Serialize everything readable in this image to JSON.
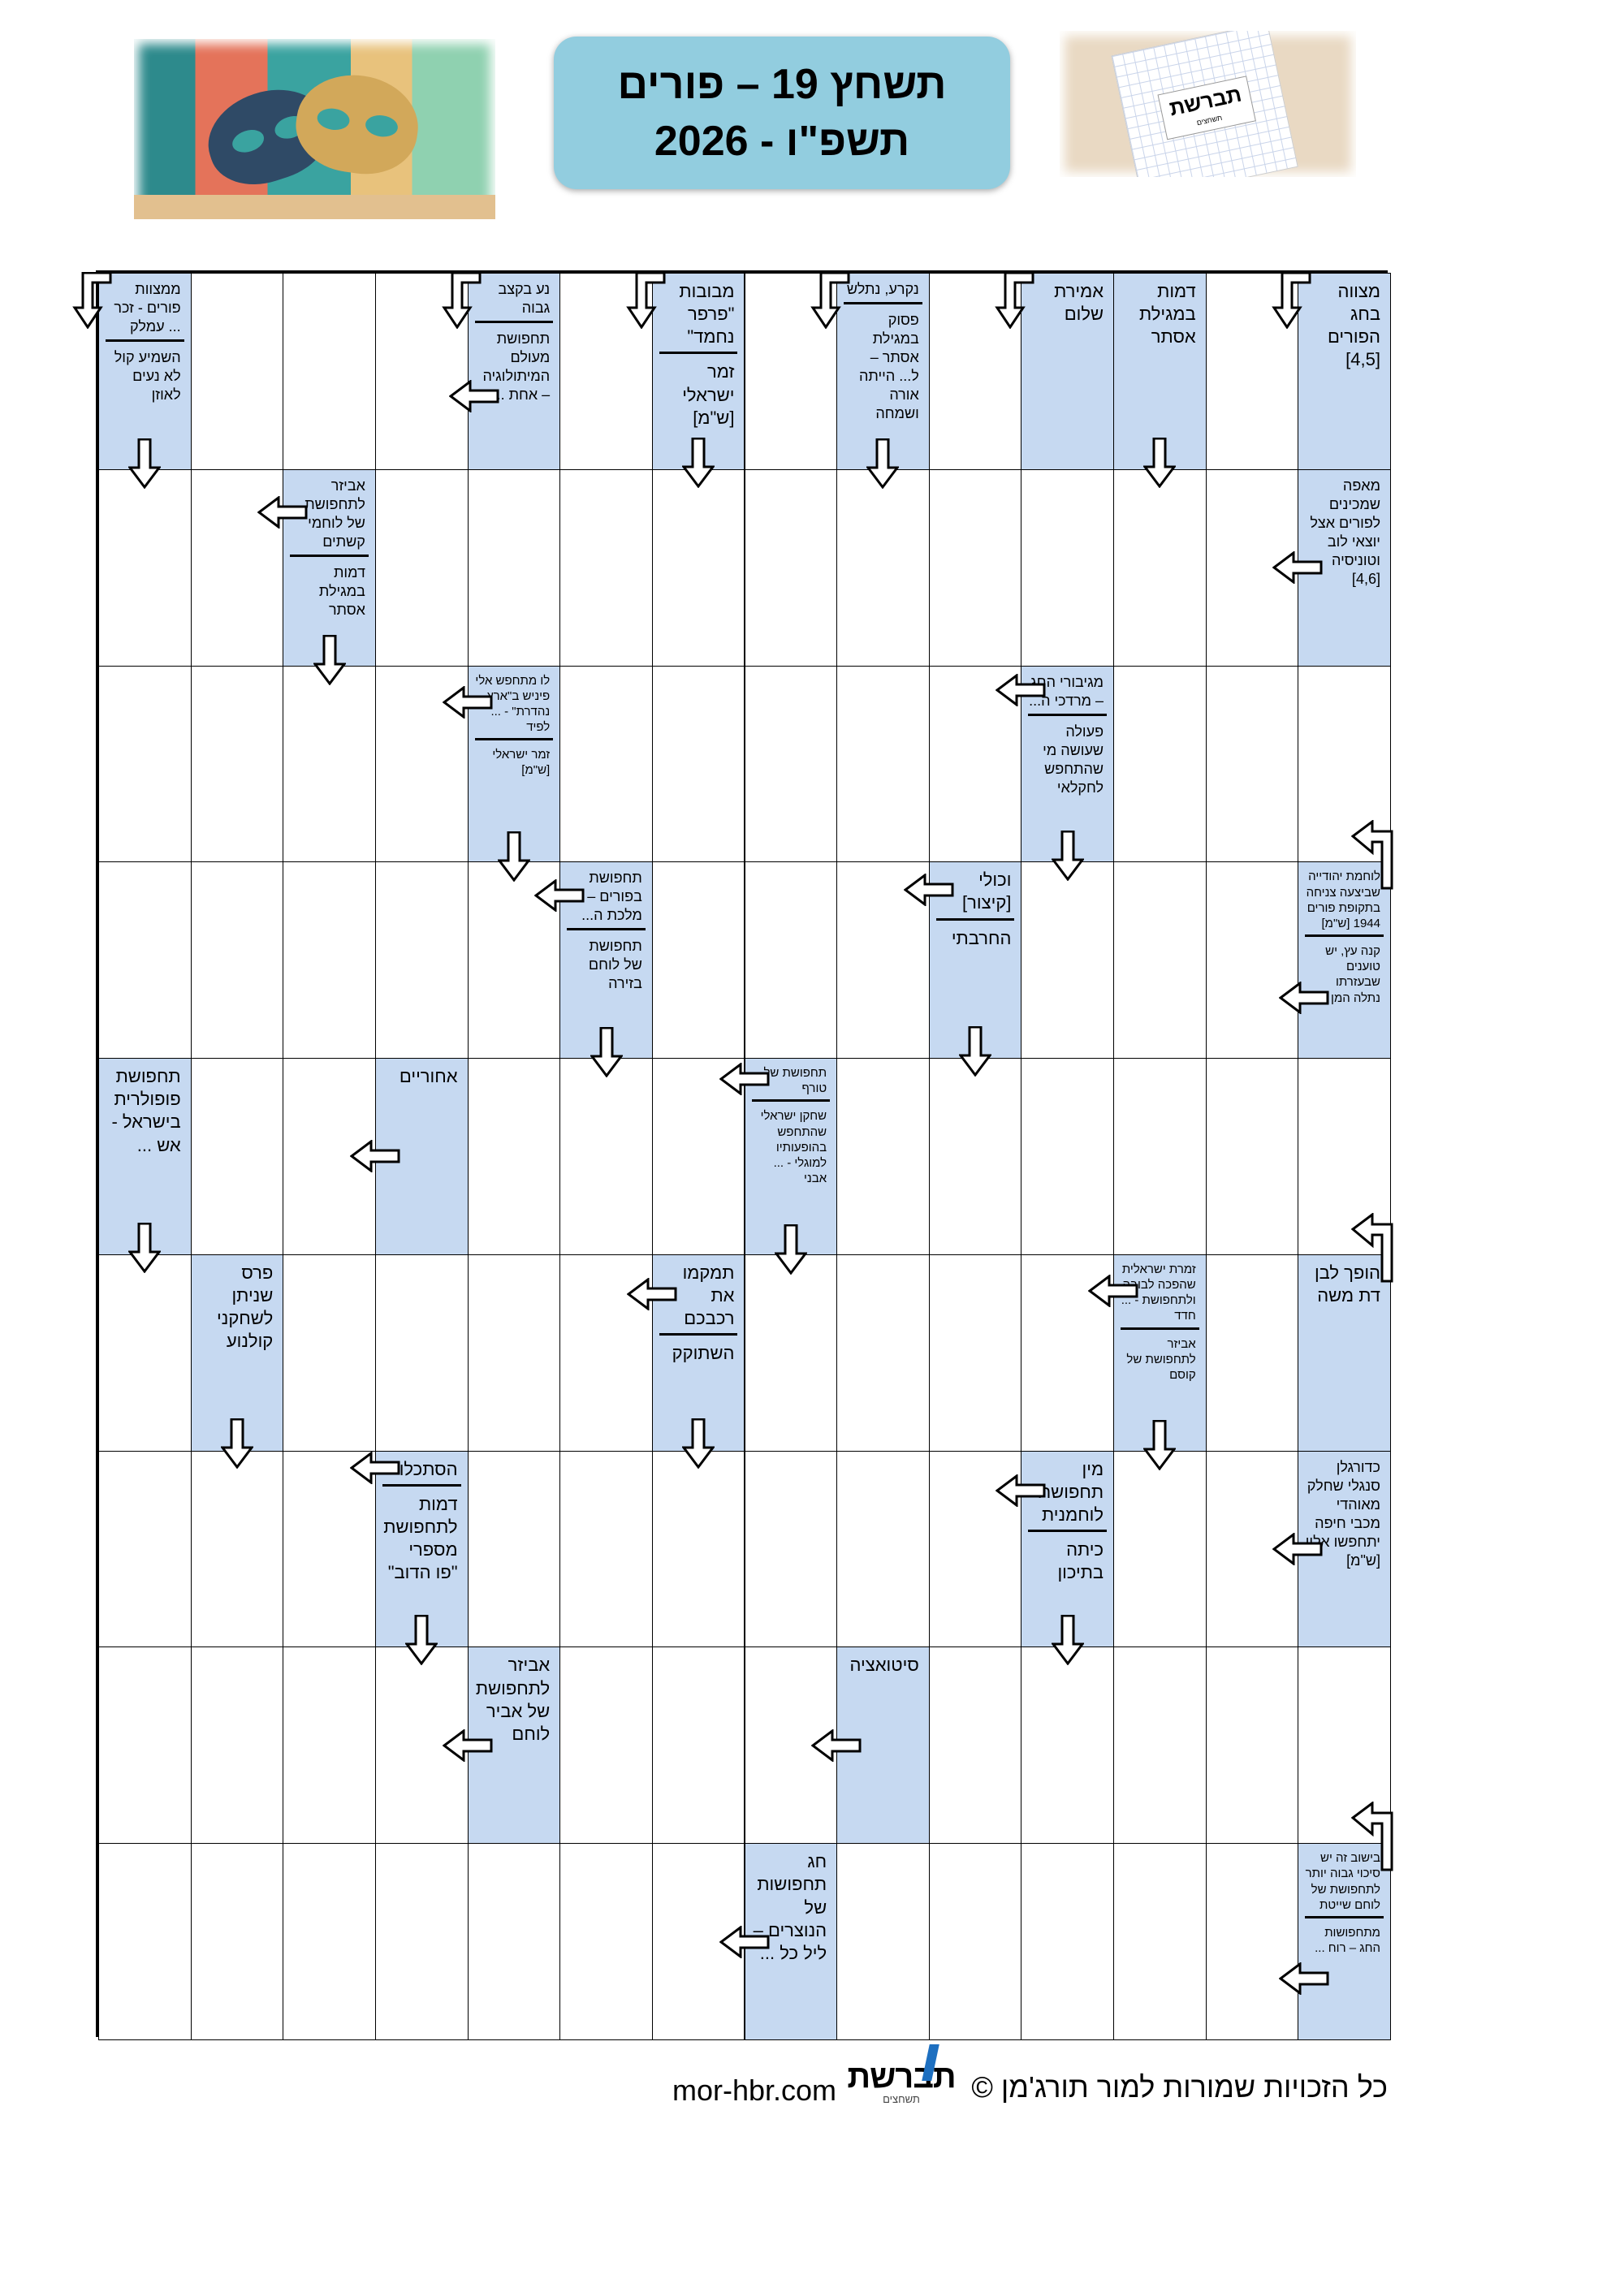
{
  "header": {
    "title_line1": "תשחץ 19 – פורים",
    "title_line2": "תשפ\"ו - 2026",
    "left_image": "carnival-masks",
    "right_image": {
      "logo_text": "תברשת",
      "logo_sub": "תשחצים"
    }
  },
  "puzzle": {
    "rows": 9,
    "cols": 14,
    "clue_color": "#C6D9F1",
    "clues": [
      {
        "row": 0,
        "col": 0,
        "parts": [
          {
            "text": "מצווה בחג הפורים [4,5]",
            "arrow": "elbow-down"
          }
        ]
      },
      {
        "row": 0,
        "col": 2,
        "parts": [
          {
            "text": "דמות במגילת אסתר",
            "arrow": "down"
          }
        ]
      },
      {
        "row": 0,
        "col": 3,
        "parts": [
          {
            "text": "אמירת שלום",
            "arrow": "elbow-down"
          }
        ]
      },
      {
        "row": 0,
        "col": 5,
        "parts": [
          {
            "text": "נקרע, נתלש",
            "arrow": "elbow-down"
          },
          {
            "text": "פסוק במגילת אסתר – ל... הייתה אורה ושמחה",
            "arrow": "down"
          }
        ]
      },
      {
        "row": 0,
        "col": 7,
        "parts": [
          {
            "text": "מבובות \"פרפר נחמד\"",
            "arrow": "elbow-down"
          },
          {
            "text": "זמר ישראלי [ש\"מ]",
            "arrow": "down"
          }
        ]
      },
      {
        "row": 0,
        "col": 9,
        "parts": [
          {
            "text": "נע בקצב גבוה",
            "arrow": "elbow-down"
          },
          {
            "text": "תחפושת מעולם המיתולוגיה – אחת ...",
            "arrow": "left"
          }
        ]
      },
      {
        "row": 0,
        "col": 13,
        "parts": [
          {
            "text": "ממצוות פורים - זכר ... עמלק",
            "arrow": "elbow-down"
          },
          {
            "text": "השמיע קול לא נעים לאוזן",
            "arrow": "down"
          }
        ]
      },
      {
        "row": 1,
        "col": 0,
        "parts": [
          {
            "text": "מאפה שמכינים לפורים אצל יוצאי לוב וטוניסיה [4,6]",
            "arrow": "left"
          }
        ]
      },
      {
        "row": 1,
        "col": 11,
        "parts": [
          {
            "text": "אביזר לתחפושת של לוחמי קשתים",
            "arrow": "left"
          },
          {
            "text": "דמות במגילת אסתר",
            "arrow": "down"
          }
        ]
      },
      {
        "row": 2,
        "col": 3,
        "parts": [
          {
            "text": "מגיבורי החג – מרדכי ה...",
            "arrow": "left"
          },
          {
            "text": "פעולה שעושה מי שהתחפש לחקלאי",
            "arrow": "down"
          }
        ]
      },
      {
        "row": 2,
        "col": 9,
        "parts": [
          {
            "text": "לו מתחפש אלי פיניש ב\"ארץ נהדרת\" - ... לפיד",
            "arrow": "left"
          },
          {
            "text": "זמר ישראלי [ש\"מ]",
            "arrow": "down"
          }
        ]
      },
      {
        "row": 3,
        "col": 0,
        "parts": [
          {
            "text": "לוחמת יהודייה שביצעה צניחה בתקופת פורים 1944 [ש\"מ]",
            "arrow": "elbow-up-left"
          },
          {
            "text": "קנה עץ, יש טוענים שבעזרתו נתלה המן",
            "arrow": "left"
          }
        ]
      },
      {
        "row": 3,
        "col": 4,
        "parts": [
          {
            "text": "וכולי [קיצור]",
            "arrow": "left"
          },
          {
            "text": "החרבתי",
            "arrow": "down"
          }
        ]
      },
      {
        "row": 3,
        "col": 8,
        "parts": [
          {
            "text": "תחפושת בפורים – מלכת ה...",
            "arrow": "left"
          },
          {
            "text": "תחפושת של לוחם בזירה",
            "arrow": "down"
          }
        ]
      },
      {
        "row": 4,
        "col": 6,
        "parts": [
          {
            "text": "תחפושת של טורף",
            "arrow": "left"
          },
          {
            "text": "שחקן ישראלי שהתחפש בהופעותיו למוגלי - ... אבני",
            "arrow": "down"
          }
        ]
      },
      {
        "row": 4,
        "col": 10,
        "parts": [
          {
            "text": "אחוריים",
            "arrow": "left"
          }
        ]
      },
      {
        "row": 4,
        "col": 13,
        "parts": [
          {
            "text": "תחפושת פופולרית בישראל - אש ...",
            "arrow": "down"
          }
        ]
      },
      {
        "row": 5,
        "col": 0,
        "parts": [
          {
            "text": "הופך לבן דת משה",
            "arrow": "elbow-up-left"
          }
        ]
      },
      {
        "row": 5,
        "col": 2,
        "parts": [
          {
            "text": "זמרת ישראלית שהפכה לבובה ולתחפושת - ... חדד",
            "arrow": "left"
          },
          {
            "text": "אביזר לתחפושת של קוסם",
            "arrow": "down"
          }
        ]
      },
      {
        "row": 5,
        "col": 7,
        "parts": [
          {
            "text": "תמקמו את רכבכם",
            "arrow": "left"
          },
          {
            "text": "השתוקק",
            "arrow": "down"
          }
        ]
      },
      {
        "row": 5,
        "col": 12,
        "parts": [
          {
            "text": "פרס שניתן לשחקני קולנוע",
            "arrow": "down"
          }
        ]
      },
      {
        "row": 6,
        "col": 0,
        "parts": [
          {
            "text": "כדורגלן סנגלי שחלק מאוהדי מכבי חיפה יתחפשו אליו [ש\"מ]",
            "arrow": "left"
          }
        ]
      },
      {
        "row": 6,
        "col": 3,
        "parts": [
          {
            "text": "מין תחפושת לוחמנית",
            "arrow": "left"
          },
          {
            "text": "כיתה בתיכון",
            "arrow": "down"
          }
        ]
      },
      {
        "row": 6,
        "col": 10,
        "parts": [
          {
            "text": "הסתכלו",
            "arrow": "left"
          },
          {
            "text": "דמות לתחפושת מספרי \"פו הדוב\"",
            "arrow": "down"
          }
        ]
      },
      {
        "row": 7,
        "col": 5,
        "parts": [
          {
            "text": "סיטואציה",
            "arrow": "left"
          }
        ]
      },
      {
        "row": 7,
        "col": 9,
        "parts": [
          {
            "text": "אביזר לתחפושת של אביר לוחם",
            "arrow": "left"
          }
        ]
      },
      {
        "row": 8,
        "col": 0,
        "parts": [
          {
            "text": "בישוב זה יש סיכוי גבוה יותר לתחפושת של לוחם שייטת",
            "arrow": "elbow-up-left"
          },
          {
            "text": "מתחפושות החג – רוח ...",
            "arrow": "left"
          }
        ]
      },
      {
        "row": 8,
        "col": 6,
        "parts": [
          {
            "text": "חג תחפושות של הנוצרים – ליל כל ...",
            "arrow": "left"
          }
        ]
      }
    ]
  },
  "footer": {
    "copyright": "כל הזכויות שמורות למור תורג'מן ©",
    "logo_text": "תברשת",
    "logo_sub": "תשחצים",
    "url": "mor-hbr.com"
  }
}
